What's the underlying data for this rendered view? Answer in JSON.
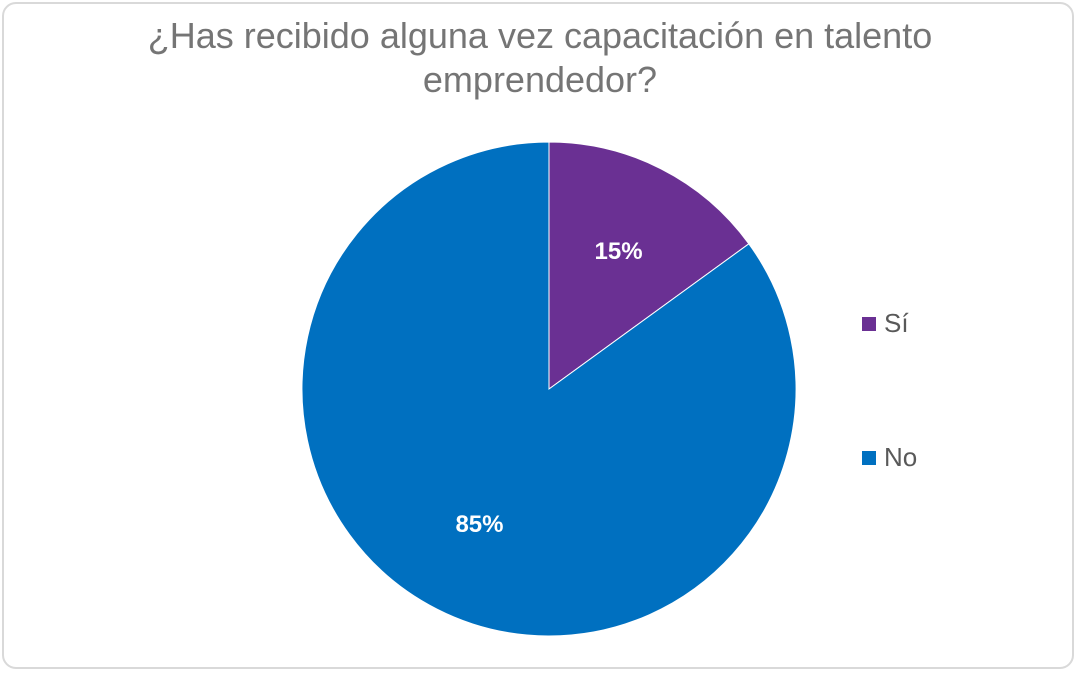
{
  "chart_data": {
    "type": "pie",
    "title": "¿Has recibido alguna vez capacitación en talento emprendedor?",
    "categories": [
      "Sí",
      "No"
    ],
    "values": [
      15,
      85
    ],
    "data_labels": [
      "15%",
      "85%"
    ],
    "colors": [
      "#6a3093",
      "#0070c0"
    ],
    "label_color": "#ffffff",
    "legend_position": "right"
  }
}
